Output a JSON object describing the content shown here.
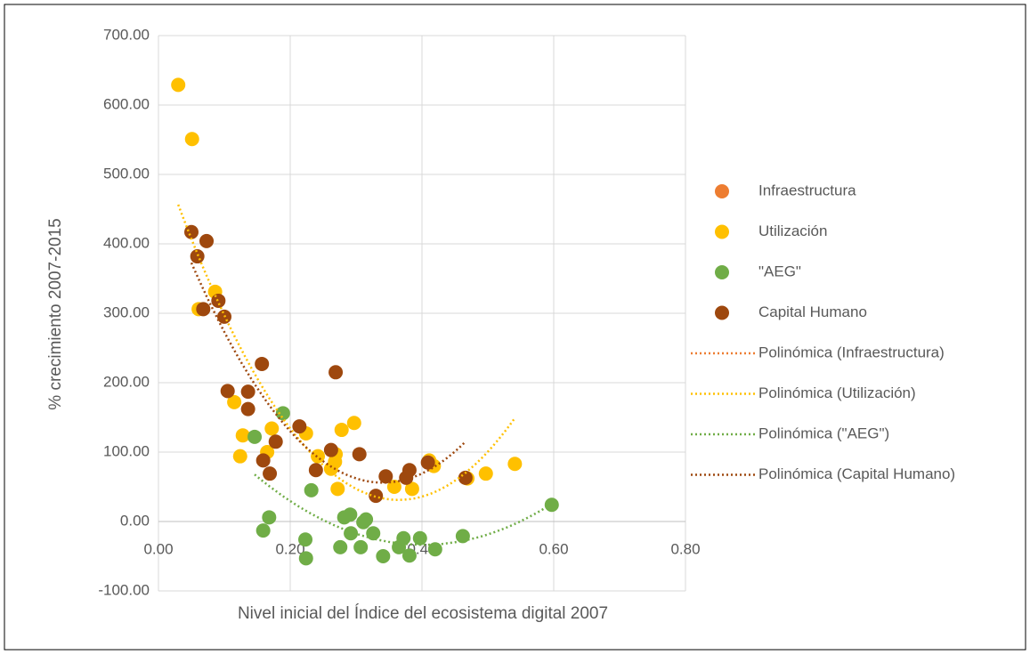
{
  "chart_data": {
    "type": "scatter",
    "x_label": "Nivel inicial del Índice del ecosistema digital 2007",
    "y_label": "% crecimiento 2007-2015",
    "xlim": [
      0,
      0.8
    ],
    "ylim": [
      -100,
      700
    ],
    "xticks": [
      {
        "value": 0,
        "label": "0.00"
      },
      {
        "value": 0.2,
        "label": "0.20"
      },
      {
        "value": 0.4,
        "label": "0.40"
      },
      {
        "value": 0.6,
        "label": "0.60"
      },
      {
        "value": 0.8,
        "label": "0.80"
      }
    ],
    "yticks": [
      {
        "value": -100,
        "label": "-100.00"
      },
      {
        "value": 0,
        "label": "0.00"
      },
      {
        "value": 100,
        "label": "100.00"
      },
      {
        "value": 200,
        "label": "200.00"
      },
      {
        "value": 300,
        "label": "300.00"
      },
      {
        "value": 400,
        "label": "400.00"
      },
      {
        "value": 500,
        "label": "500.00"
      },
      {
        "value": 600,
        "label": "600.00"
      },
      {
        "value": 700,
        "label": "700.00"
      }
    ],
    "grid": true,
    "legend": "right",
    "series": [
      {
        "name": "Infraestructura",
        "color": "#ed7d31",
        "x": [],
        "values": [],
        "trendline": {
          "type": "polynomial",
          "order": 2,
          "label": "Polinómica (Infraestructura)"
        }
      },
      {
        "name": "Utilización",
        "color": "#ffc000",
        "x": [
          0.03,
          0.051,
          0.061,
          0.086,
          0.115,
          0.128,
          0.124,
          0.172,
          0.165,
          0.224,
          0.242,
          0.268,
          0.262,
          0.269,
          0.278,
          0.297,
          0.272,
          0.358,
          0.385,
          0.411,
          0.418,
          0.469,
          0.497,
          0.541
        ],
        "values": [
          629,
          551,
          306,
          331,
          172,
          124,
          94,
          134,
          100,
          127,
          94,
          86,
          76,
          97,
          132,
          142,
          47,
          50,
          47,
          88,
          80,
          62,
          69,
          83
        ],
        "trendline": {
          "type": "polynomial",
          "order": 2,
          "label": "Polinómica (Utilización)"
        }
      },
      {
        "name": "\"AEG\"",
        "color": "#70ad47",
        "x": [
          0.146,
          0.189,
          0.168,
          0.159,
          0.223,
          0.224,
          0.232,
          0.276,
          0.282,
          0.291,
          0.292,
          0.307,
          0.311,
          0.315,
          0.326,
          0.341,
          0.365,
          0.372,
          0.381,
          0.397,
          0.42,
          0.462,
          0.597
        ],
        "values": [
          122,
          156,
          6,
          -13,
          -26,
          -53,
          45,
          -37,
          6,
          10,
          -17,
          -37,
          -1,
          3,
          -17,
          -50,
          -37,
          -24,
          -49,
          -24,
          -40,
          -21,
          24
        ],
        "trendline": {
          "type": "polynomial",
          "order": 2,
          "label": "Polinómica (\"AEG\")"
        }
      },
      {
        "name": "Capital Humano",
        "color": "#9e480e",
        "x": [
          0.05,
          0.059,
          0.073,
          0.068,
          0.091,
          0.1,
          0.105,
          0.157,
          0.136,
          0.136,
          0.159,
          0.178,
          0.169,
          0.214,
          0.239,
          0.262,
          0.269,
          0.305,
          0.33,
          0.345,
          0.376,
          0.381,
          0.409,
          0.466
        ],
        "values": [
          417,
          382,
          404,
          306,
          318,
          295,
          188,
          227,
          187,
          162,
          88,
          115,
          69,
          137,
          74,
          103,
          215,
          97,
          37,
          65,
          63,
          74,
          85,
          63
        ],
        "trendline": {
          "type": "polynomial",
          "order": 2,
          "label": "Polinómica (Capital Humano)"
        }
      }
    ]
  }
}
